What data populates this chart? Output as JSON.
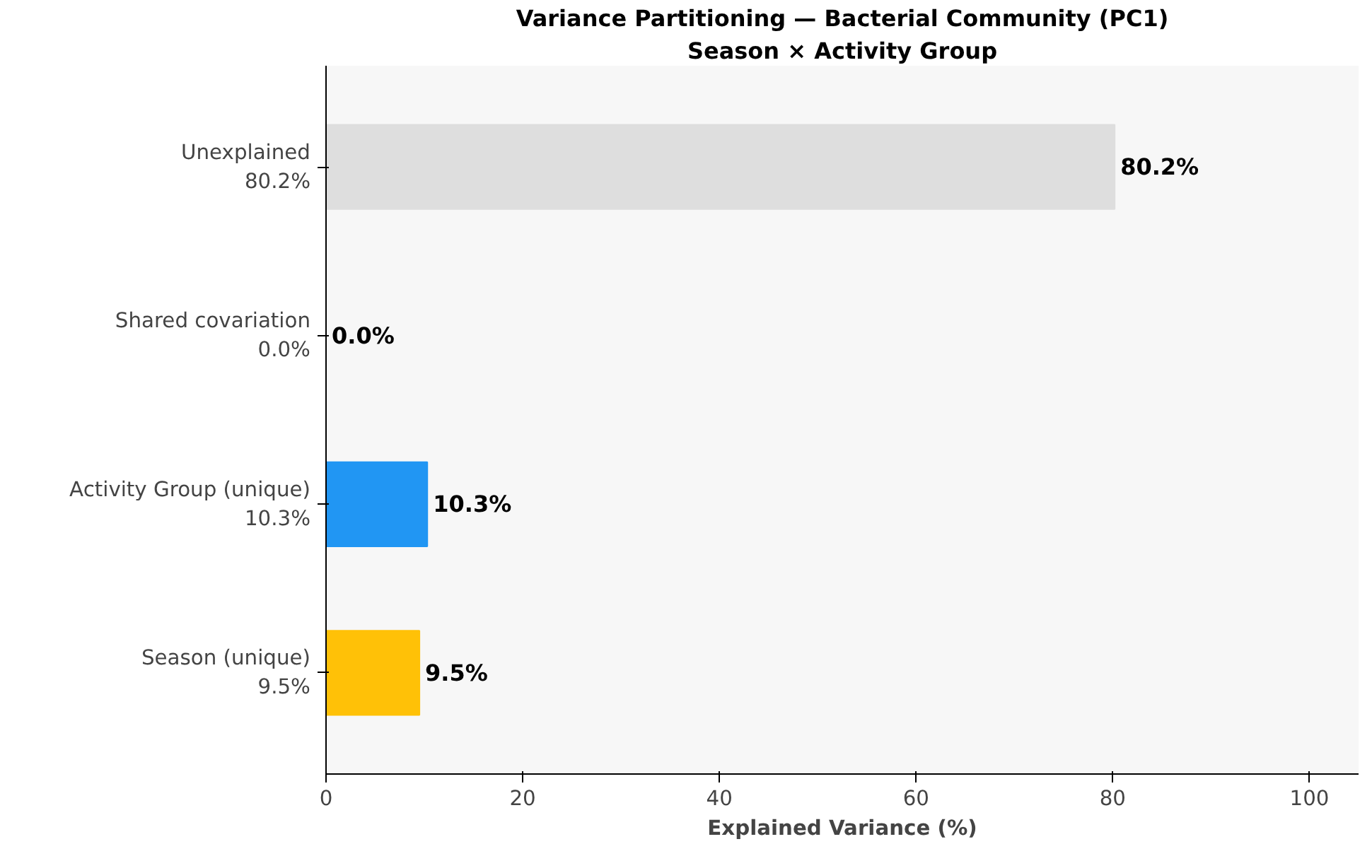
{
  "chart_data": {
    "type": "bar",
    "orientation": "horizontal",
    "title": "Variance Partitioning — Bacterial Community (PC1)",
    "subtitle": "Season × Activity Group",
    "xlabel": "Explained Variance (%)",
    "categories": [
      "Unexplained\n80.2%",
      "Shared covariation\n0.0%",
      "Activity Group (unique)\n10.3%",
      "Season (unique)\n9.5%"
    ],
    "values": [
      80.2,
      0.0,
      10.3,
      9.5
    ],
    "colors": [
      "#dedede",
      "#9e9e9e",
      "#2196f3",
      "#ffc107"
    ],
    "value_labels": [
      "80.2%",
      "0.0%",
      "10.3%",
      "9.5%"
    ],
    "xlim": [
      0,
      105
    ],
    "xticks": [
      0,
      20,
      40,
      60,
      80,
      100
    ],
    "grid": false
  }
}
